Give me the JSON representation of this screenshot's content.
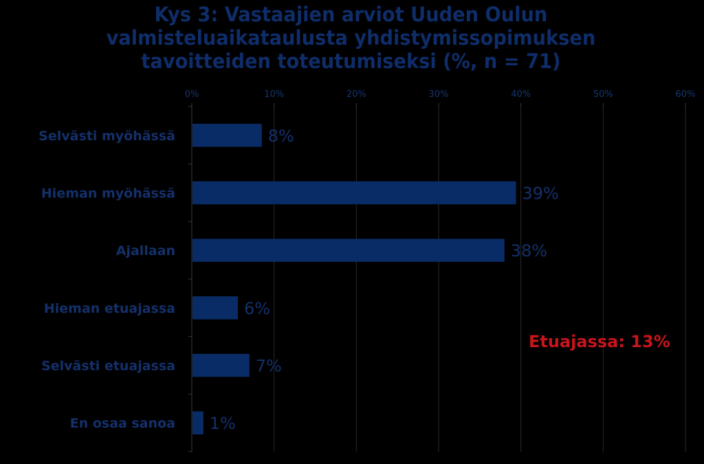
{
  "chart_data": {
    "type": "bar",
    "orientation": "horizontal",
    "title_lines": [
      "Kys 3: Vastaajien arviot Uuden Oulun",
      "valmisteluaikataulusta yhdistymissopimuksen",
      "tavoitteiden toteutumiseksi (%, n = 71)"
    ],
    "categories": [
      "Selvästi myöhässä",
      "Hieman myöhässä",
      "Ajallaan",
      "Hieman etuajassa",
      "Selvästi etuajassa",
      "En osaa sanoa"
    ],
    "values": [
      8.5,
      39.4,
      38.0,
      5.6,
      7.0,
      1.4
    ],
    "value_labels": [
      "8%",
      "39%",
      "38%",
      "6%",
      "7%",
      "1%"
    ],
    "xlim": [
      0,
      60
    ],
    "ticks": [
      0,
      10,
      20,
      30,
      40,
      50,
      60
    ],
    "tick_labels": [
      "0%",
      "10%",
      "20%",
      "30%",
      "40%",
      "50%",
      "60%"
    ],
    "grid": true,
    "xaxis_position": "top",
    "annotation": "Etuajassa: 13%",
    "colors": {
      "bar": "#0a2c66",
      "text": "#14306a",
      "grid": "#2a2a2a",
      "annotation": "#c8141b",
      "background": "#000000"
    }
  }
}
